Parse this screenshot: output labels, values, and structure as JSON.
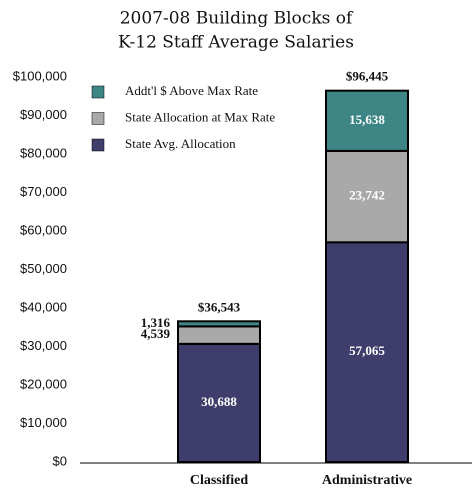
{
  "chart_data": {
    "type": "stacked_bar",
    "title": [
      "2007-08 Building Blocks of",
      "K-12 Staff Average Salaries"
    ],
    "categories": [
      "Classified",
      "Administrative"
    ],
    "series": [
      {
        "name": "State Avg. Allocation",
        "color": "#3f3d6b",
        "values": [
          30688,
          57065
        ],
        "value_labels": [
          "30,688",
          "57,065"
        ]
      },
      {
        "name": "State Allocation at Max Rate",
        "color": "#a9a9a9",
        "values": [
          4539,
          23742
        ],
        "value_labels": [
          "4,539",
          "23,742"
        ]
      },
      {
        "name": "Addt'l $ Above Max Rate",
        "color": "#3e8585",
        "values": [
          1316,
          15638
        ],
        "value_labels": [
          "1,316",
          "15,638"
        ]
      }
    ],
    "totals": [
      36543,
      96445
    ],
    "total_labels": [
      "$36,543",
      "$96,445"
    ],
    "ylim": [
      0,
      100000
    ],
    "yticks": [
      {
        "value": 0,
        "label": "$0"
      },
      {
        "value": 10000,
        "label": "$10,000"
      },
      {
        "value": 20000,
        "label": "$20,000"
      },
      {
        "value": 30000,
        "label": "$30,000"
      },
      {
        "value": 40000,
        "label": "$40,000"
      },
      {
        "value": 50000,
        "label": "$50,000"
      },
      {
        "value": 60000,
        "label": "$60,000"
      },
      {
        "value": 70000,
        "label": "$70,000"
      },
      {
        "value": 80000,
        "label": "$80,000"
      },
      {
        "value": 90000,
        "label": "$90,000"
      },
      {
        "value": 100000,
        "label": "$100,000"
      }
    ],
    "grid": false
  }
}
